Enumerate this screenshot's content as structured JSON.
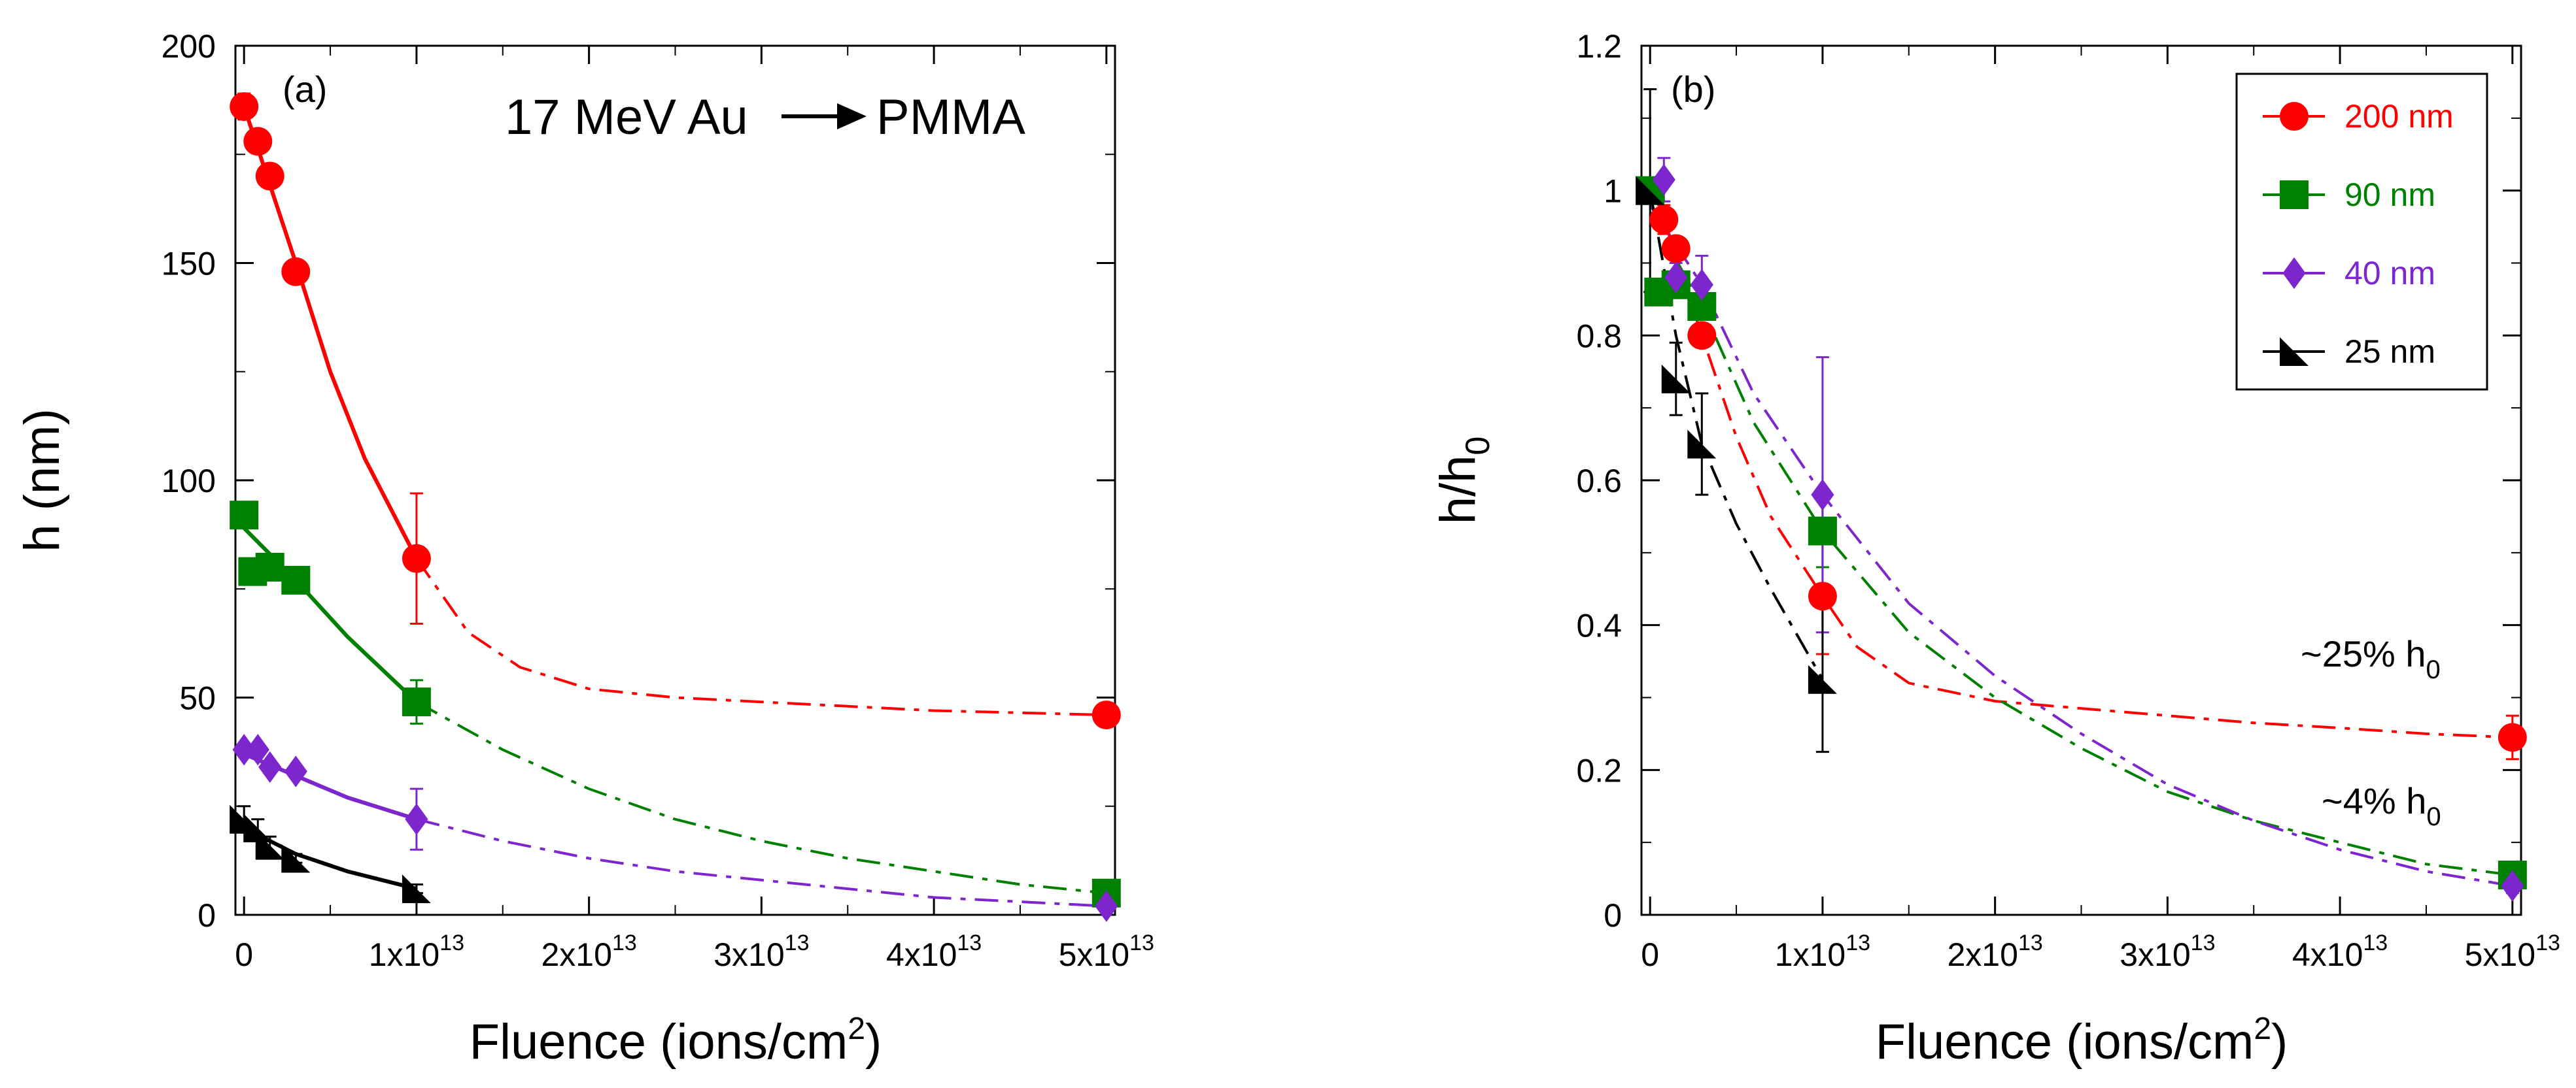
{
  "chart_data": [
    {
      "type": "scatter",
      "panel_label": "(a)",
      "annotation": "17 MeV Au",
      "annotation_target": "PMMA",
      "xlabel": "Fluence (ions/cm",
      "xlabel_sup": "2",
      "xlabel_end": ")",
      "ylabel": "h (nm)",
      "xlim": [
        -500000000000.0,
        50500000000000.0
      ],
      "ylim": [
        0,
        200
      ],
      "x_ticks": [
        {
          "value": 0,
          "base": "0",
          "exp": ""
        },
        {
          "value": 10000000000000.0,
          "base": "1x10",
          "exp": "13"
        },
        {
          "value": 20000000000000.0,
          "base": "2x10",
          "exp": "13"
        },
        {
          "value": 30000000000000.0,
          "base": "3x10",
          "exp": "13"
        },
        {
          "value": 40000000000000.0,
          "base": "4x10",
          "exp": "13"
        },
        {
          "value": 50000000000000.0,
          "base": "5x10",
          "exp": "13"
        }
      ],
      "y_ticks": [
        {
          "value": 0,
          "label": "0"
        },
        {
          "value": 50,
          "label": "50"
        },
        {
          "value": 100,
          "label": "100"
        },
        {
          "value": 150,
          "label": "150"
        },
        {
          "value": 200,
          "label": "200"
        }
      ],
      "series": [
        {
          "key": "200nm",
          "color": "#ff0000",
          "marker": "circle",
          "x": [
            0,
            800000000000.0,
            1500000000000.0,
            3000000000000.0,
            10000000000000.0,
            50000000000000.0
          ],
          "y": [
            186,
            178,
            170,
            148,
            82,
            46
          ],
          "yerr": [
            3,
            2,
            2,
            2,
            15,
            1
          ],
          "solid_fit": {
            "x": [
              0,
              1500000000000.0,
              3000000000000.0,
              5000000000000.0,
              7000000000000.0,
              10000000000000.0
            ],
            "y": [
              186,
              168,
              150,
              125,
              105,
              82
            ]
          },
          "dashed_fit": {
            "x": [
              10000000000000.0,
              13000000000000.0,
              16000000000000.0,
              20000000000000.0,
              25000000000000.0,
              30000000000000.0,
              35000000000000.0,
              40000000000000.0,
              45000000000000.0,
              50000000000000.0
            ],
            "y": [
              82,
              65,
              57,
              52,
              50,
              49,
              48,
              47,
              46.5,
              46
            ]
          }
        },
        {
          "key": "90nm",
          "color": "#008000",
          "marker": "square",
          "x": [
            0,
            500000000000.0,
            1500000000000.0,
            3000000000000.0,
            10000000000000.0,
            50000000000000.0
          ],
          "y": [
            92,
            79,
            80,
            77,
            49,
            5
          ],
          "yerr": [
            1,
            1,
            1,
            1,
            5,
            1
          ],
          "solid_fit": {
            "x": [
              0,
              3000000000000.0,
              6000000000000.0,
              10000000000000.0
            ],
            "y": [
              89,
              77,
              64,
              49
            ]
          },
          "dashed_fit": {
            "x": [
              10000000000000.0,
              15000000000000.0,
              20000000000000.0,
              25000000000000.0,
              30000000000000.0,
              35000000000000.0,
              40000000000000.0,
              45000000000000.0,
              50000000000000.0
            ],
            "y": [
              49,
              38,
              29,
              22,
              17,
              13,
              10,
              7,
              5
            ]
          }
        },
        {
          "key": "40nm",
          "color": "#7d26cd",
          "marker": "diamond",
          "x": [
            0,
            800000000000.0,
            1500000000000.0,
            3000000000000.0,
            10000000000000.0,
            50000000000000.0
          ],
          "y": [
            38,
            38,
            34,
            33,
            22,
            2
          ],
          "yerr": [
            1,
            1,
            1,
            1,
            7,
            0.5
          ],
          "solid_fit": {
            "x": [
              0,
              3000000000000.0,
              6000000000000.0,
              10000000000000.0
            ],
            "y": [
              37,
              32,
              27,
              22
            ]
          },
          "dashed_fit": {
            "x": [
              10000000000000.0,
              15000000000000.0,
              20000000000000.0,
              25000000000000.0,
              30000000000000.0,
              35000000000000.0,
              40000000000000.0,
              45000000000000.0,
              50000000000000.0
            ],
            "y": [
              22,
              17,
              13,
              10,
              8,
              6,
              4,
              3,
              2
            ]
          }
        },
        {
          "key": "25nm",
          "color": "#000000",
          "marker": "triangle",
          "x": [
            0,
            800000000000.0,
            1500000000000.0,
            3000000000000.0,
            10000000000000.0
          ],
          "y": [
            22,
            20,
            16,
            13,
            6
          ],
          "yerr": [
            3,
            2,
            2,
            1,
            1
          ],
          "solid_fit": {
            "x": [
              0,
              3000000000000.0,
              6000000000000.0,
              10000000000000.0
            ],
            "y": [
              20,
              14,
              10,
              6
            ]
          },
          "dashed_fit": null
        }
      ]
    },
    {
      "type": "scatter",
      "panel_label": "(b)",
      "xlabel": "Fluence (ions/cm",
      "xlabel_sup": "2",
      "xlabel_end": ")",
      "ylabel": "h/h",
      "ylabel_sub": "0",
      "xlim": [
        -500000000000.0,
        50500000000000.0
      ],
      "ylim": [
        0,
        1.2
      ],
      "x_ticks": [
        {
          "value": 0,
          "base": "0",
          "exp": ""
        },
        {
          "value": 10000000000000.0,
          "base": "1x10",
          "exp": "13"
        },
        {
          "value": 20000000000000.0,
          "base": "2x10",
          "exp": "13"
        },
        {
          "value": 30000000000000.0,
          "base": "3x10",
          "exp": "13"
        },
        {
          "value": 40000000000000.0,
          "base": "4x10",
          "exp": "13"
        },
        {
          "value": 50000000000000.0,
          "base": "5x10",
          "exp": "13"
        }
      ],
      "y_ticks": [
        {
          "value": 0,
          "label": "0"
        },
        {
          "value": 0.2,
          "label": "0.2"
        },
        {
          "value": 0.4,
          "label": "0.4"
        },
        {
          "value": 0.6,
          "label": "0.6"
        },
        {
          "value": 0.8,
          "label": "0.8"
        },
        {
          "value": 1.0,
          "label": "1"
        },
        {
          "value": 1.2,
          "label": "1.2"
        }
      ],
      "annotations": [
        {
          "text": "~25% h",
          "sub": "0",
          "x": 37000000000000.0,
          "y": 0.35
        },
        {
          "text": "~4% h",
          "sub": "0",
          "x": 38500000000000.0,
          "y": 0.14
        }
      ],
      "legend": {
        "placement": "top-right",
        "entries": [
          {
            "label": "200 nm",
            "color": "#ff0000",
            "marker": "circle"
          },
          {
            "label": "90 nm",
            "color": "#008000",
            "marker": "square"
          },
          {
            "label": "40 nm",
            "color": "#7d26cd",
            "marker": "diamond"
          },
          {
            "label": "25 nm",
            "color": "#000000",
            "marker": "triangle"
          }
        ]
      },
      "series": [
        {
          "key": "200nm",
          "color": "#ff0000",
          "marker": "circle",
          "x": [
            800000000000.0,
            1500000000000.0,
            3000000000000.0,
            10000000000000.0,
            50000000000000.0
          ],
          "y": [
            0.96,
            0.92,
            0.8,
            0.44,
            0.245
          ],
          "yerr": [
            0.02,
            0.01,
            0.01,
            0.08,
            0.03
          ],
          "dashed_fit": {
            "x": [
              800000000000.0,
              3000000000000.0,
              5000000000000.0,
              7000000000000.0,
              10000000000000.0,
              12000000000000.0,
              15000000000000.0,
              20000000000000.0,
              25000000000000.0,
              30000000000000.0,
              35000000000000.0,
              40000000000000.0,
              45000000000000.0,
              50000000000000.0
            ],
            "y": [
              0.96,
              0.8,
              0.66,
              0.55,
              0.44,
              0.37,
              0.32,
              0.295,
              0.285,
              0.275,
              0.265,
              0.258,
              0.25,
              0.245
            ]
          }
        },
        {
          "key": "90nm",
          "color": "#008000",
          "marker": "square",
          "x": [
            0,
            500000000000.0,
            1500000000000.0,
            3000000000000.0,
            10000000000000.0,
            50000000000000.0
          ],
          "y": [
            1.0,
            0.86,
            0.87,
            0.84,
            0.53,
            0.055
          ],
          "yerr": [
            0.01,
            0.01,
            0.01,
            0.01,
            0.05,
            0.01
          ],
          "dashed_fit": {
            "x": [
              0,
              3000000000000.0,
              6000000000000.0,
              10000000000000.0,
              15000000000000.0,
              20000000000000.0,
              25000000000000.0,
              30000000000000.0,
              35000000000000.0,
              40000000000000.0,
              45000000000000.0,
              50000000000000.0
            ],
            "y": [
              0.97,
              0.84,
              0.68,
              0.53,
              0.39,
              0.3,
              0.23,
              0.17,
              0.13,
              0.1,
              0.07,
              0.055
            ]
          }
        },
        {
          "key": "40nm",
          "color": "#7d26cd",
          "marker": "diamond",
          "x": [
            800000000000.0,
            1500000000000.0,
            3000000000000.0,
            10000000000000.0,
            50000000000000.0
          ],
          "y": [
            1.015,
            0.88,
            0.87,
            0.58,
            0.04
          ],
          "yerr": [
            0.03,
            0.02,
            0.04,
            0.19,
            0.01
          ],
          "dashed_fit": {
            "x": [
              0,
              3000000000000.0,
              6000000000000.0,
              10000000000000.0,
              15000000000000.0,
              20000000000000.0,
              25000000000000.0,
              30000000000000.0,
              35000000000000.0,
              40000000000000.0,
              45000000000000.0,
              50000000000000.0
            ],
            "y": [
              0.98,
              0.87,
              0.72,
              0.58,
              0.43,
              0.33,
              0.25,
              0.18,
              0.13,
              0.09,
              0.06,
              0.04
            ]
          }
        },
        {
          "key": "25nm",
          "color": "#000000",
          "marker": "triangle",
          "x": [
            0,
            1500000000000.0,
            3000000000000.0,
            10000000000000.0
          ],
          "y": [
            1.0,
            0.74,
            0.65,
            0.325
          ],
          "yerr": [
            0.14,
            0.05,
            0.07,
            0.1
          ],
          "dashed_fit": {
            "x": [
              0,
              1500000000000.0,
              3000000000000.0,
              5000000000000.0,
              7000000000000.0,
              10000000000000.0
            ],
            "y": [
              1.0,
              0.8,
              0.65,
              0.54,
              0.45,
              0.325
            ]
          }
        }
      ]
    }
  ]
}
